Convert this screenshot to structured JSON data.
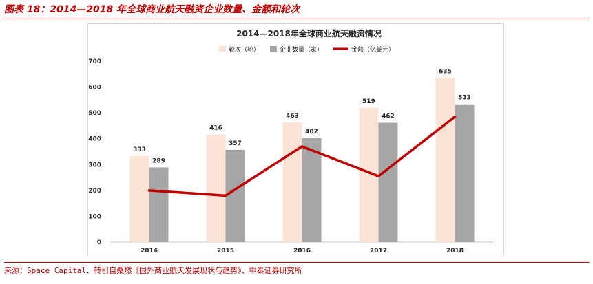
{
  "figure": {
    "caption": "图表 18：2014—2018 年全球商业航天融资企业数量、金额和轮次",
    "source": "来源：Space Capital、转引自桑燃《国外商业航天发展现状与趋势》、中泰证券研究所"
  },
  "chart_data": {
    "type": "bar",
    "title": "2014—2018年全球商业航天融资情况",
    "categories": [
      "2014",
      "2015",
      "2016",
      "2017",
      "2018"
    ],
    "ylim": [
      0,
      700
    ],
    "yticks": [
      0,
      100,
      200,
      300,
      400,
      500,
      600,
      700
    ],
    "grid": false,
    "legend_position": "top",
    "series": [
      {
        "name": "轮次（轮）",
        "kind": "bar",
        "color": "#fbe3d6",
        "values": [
          333,
          416,
          463,
          519,
          635
        ],
        "labels": [
          "333",
          "416",
          "463",
          "519",
          "635"
        ]
      },
      {
        "name": "企业数量（家）",
        "kind": "bar",
        "color": "#a6a6a6",
        "values": [
          289,
          357,
          402,
          462,
          533
        ],
        "labels": [
          "289",
          "357",
          "402",
          "462",
          "533"
        ]
      },
      {
        "name": "金额（亿美元）",
        "kind": "line",
        "color": "#c00000",
        "values": [
          200,
          180,
          370,
          255,
          485
        ]
      }
    ]
  }
}
